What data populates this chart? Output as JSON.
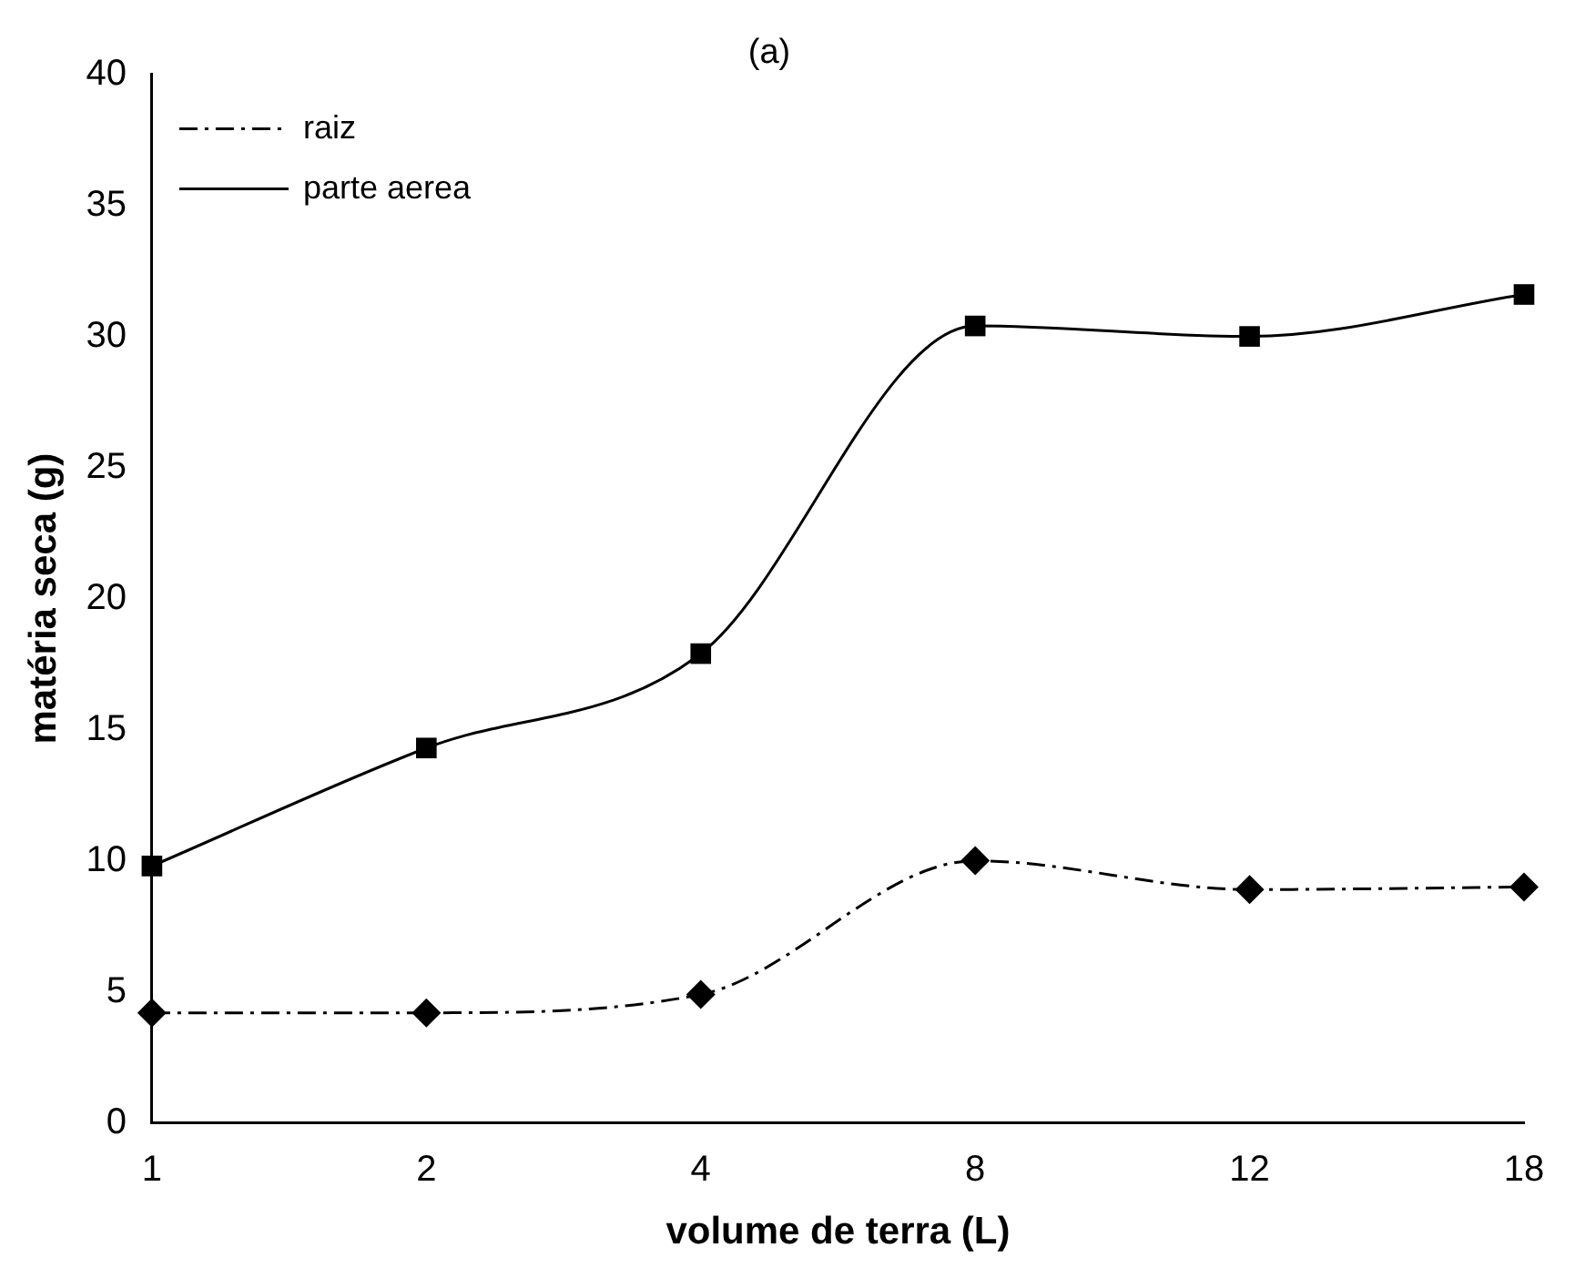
{
  "chart_data": {
    "type": "line",
    "title": "(a)",
    "xlabel": "volume de terra (L)",
    "ylabel": "matéria seca (g)",
    "categories": [
      "1",
      "2",
      "4",
      "8",
      "12",
      "18"
    ],
    "series": [
      {
        "name": "raiz",
        "color": "#000000",
        "values": [
          4.2,
          4.2,
          4.9,
          10.0,
          8.9,
          9.0
        ],
        "marker": "diamond",
        "line_style": "dashed"
      },
      {
        "name": "parte aerea",
        "color": "#000000",
        "values": [
          9.8,
          14.3,
          17.9,
          30.4,
          30.0,
          31.6
        ],
        "marker": "square",
        "line_style": "solid"
      }
    ],
    "ylim": [
      0,
      40
    ],
    "yticks": [
      0,
      5,
      10,
      15,
      20,
      25,
      30,
      35,
      40
    ],
    "grid": false,
    "legend": "top left"
  }
}
